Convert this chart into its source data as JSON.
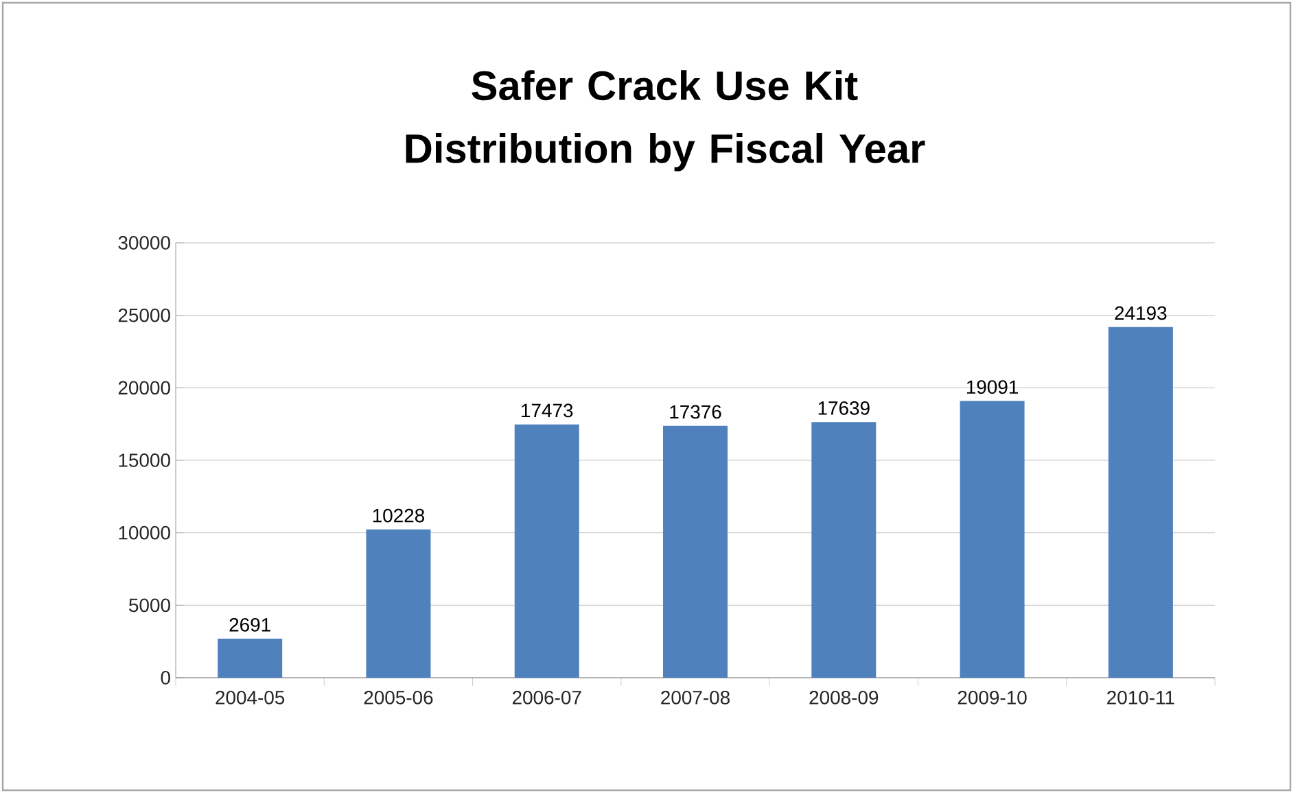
{
  "chart_data": {
    "type": "bar",
    "title": "Safer Crack Use Kit Distribution by Fiscal Year",
    "categories": [
      "2004-05",
      "2005-06",
      "2006-07",
      "2007-08",
      "2008-09",
      "2009-10",
      "2010-11"
    ],
    "values": [
      2691,
      10228,
      17473,
      17376,
      17639,
      19091,
      24193
    ],
    "color": "#4f81bd",
    "ylim": [
      0,
      30000
    ],
    "yticks": [
      0,
      5000,
      10000,
      15000,
      20000,
      25000,
      30000
    ],
    "grid": "y",
    "data_labels": true
  }
}
